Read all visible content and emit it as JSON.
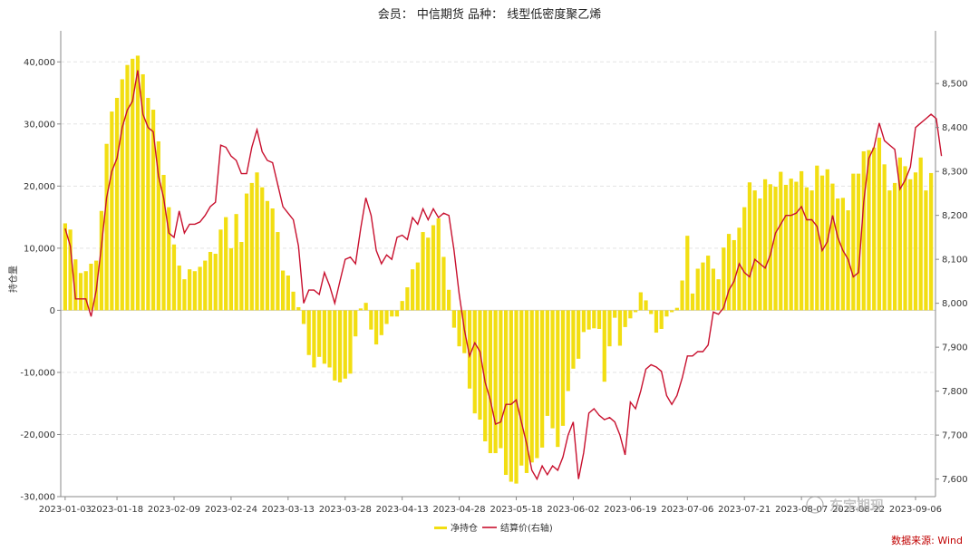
{
  "chart_data": {
    "type": "bar+line",
    "title": "会员： 中信期货 品种： 线型低密度聚乙烯",
    "ylabel_left": "持仓量",
    "source_label": "数据来源: Wind",
    "watermark": "东宇期现",
    "colors": {
      "bar": "#f2de12",
      "line": "#c8102e",
      "grid": "#e3e3e3",
      "axis": "#888888"
    },
    "left_axis": {
      "min": -30000,
      "max": 45000,
      "ticks": [
        -30000,
        -20000,
        -10000,
        0,
        10000,
        20000,
        30000,
        40000
      ],
      "tick_labels": [
        "-30,000",
        "-20,000",
        "-10,000",
        "0",
        "10,000",
        "20,000",
        "30,000",
        "40,000"
      ]
    },
    "right_axis": {
      "min": 7560,
      "max": 8620,
      "ticks": [
        7600,
        7700,
        7800,
        7900,
        8000,
        8100,
        8200,
        8300,
        8400,
        8500
      ],
      "tick_labels": [
        "7,600",
        "7,700",
        "7,800",
        "7,900",
        "8,000",
        "8,100",
        "8,200",
        "8,300",
        "8,400",
        "8,500"
      ]
    },
    "x_tick_labels": [
      "2023-01-03",
      "2023-01-18",
      "2023-02-09",
      "2023-02-24",
      "2023-03-13",
      "2023-03-28",
      "2023-04-13",
      "2023-04-28",
      "2023-05-18",
      "2023-06-02",
      "2023-06-19",
      "2023-07-06",
      "2023-07-21",
      "2023-08-07",
      "2023-08-22",
      "2023-09-06"
    ],
    "x_tick_index": [
      0,
      10,
      21,
      32,
      43,
      54,
      65,
      76,
      87,
      98,
      109,
      120,
      131,
      142,
      153,
      164
    ],
    "series": [
      {
        "name": "净持仓",
        "type": "bar",
        "values": [
          14000,
          13000,
          8200,
          6000,
          6300,
          7500,
          8000,
          16000,
          26800,
          32000,
          34200,
          37200,
          39500,
          40500,
          41000,
          38000,
          34200,
          32300,
          27200,
          21800,
          16600,
          10600,
          7200,
          5000,
          6600,
          6300,
          7000,
          8000,
          9400,
          9100,
          13000,
          15000,
          10000,
          15500,
          11000,
          18800,
          20500,
          22200,
          19800,
          17600,
          16400,
          12600,
          6400,
          5600,
          3000,
          500,
          -2200,
          -7200,
          -9200,
          -7500,
          -8600,
          -9200,
          -11300,
          -11600,
          -11000,
          -10200,
          -4200,
          300,
          1200,
          -3100,
          -5500,
          -4000,
          -2200,
          -1000,
          -1000,
          1500,
          3700,
          6600,
          7700,
          12600,
          11700,
          13700,
          14800,
          8600,
          3300,
          -2800,
          -5800,
          -6900,
          -12600,
          -16600,
          -17600,
          -21100,
          -23000,
          -23000,
          -22200,
          -26500,
          -27600,
          -27900,
          -25000,
          -26200,
          -24500,
          -23800,
          -22100,
          -17000,
          -19000,
          -22000,
          -18600,
          -13000,
          -9400,
          -7800,
          -3500,
          -3100,
          -2900,
          -3000,
          -11500,
          -5800,
          -1200,
          -5700,
          -2700,
          -1300,
          -300,
          2900,
          1600,
          -600,
          -3600,
          -3000,
          -1000,
          -300,
          400,
          4800,
          12000,
          2700,
          6700,
          7700,
          8800,
          6700,
          5000,
          10100,
          12300,
          11300,
          13300,
          16600,
          20600,
          19300,
          18000,
          21100,
          20300,
          19900,
          22300,
          20200,
          21200,
          20700,
          22400,
          19800,
          19300,
          23300,
          21700,
          22700,
          20400,
          18000,
          18100,
          16100,
          22000,
          22000,
          25600,
          25800,
          26200,
          27800,
          23500,
          19300,
          20500,
          24600,
          23200,
          21100,
          22200,
          24600,
          19300,
          22100
        ]
      },
      {
        "name": "结算价(右轴)",
        "type": "line",
        "values": [
          8170,
          8130,
          8010,
          8010,
          8010,
          7970,
          8030,
          8130,
          8240,
          8300,
          8330,
          8400,
          8440,
          8460,
          8530,
          8430,
          8400,
          8390,
          8290,
          8240,
          8160,
          8150,
          8210,
          8160,
          8180,
          8180,
          8185,
          8200,
          8220,
          8230,
          8360,
          8355,
          8335,
          8325,
          8295,
          8295,
          8355,
          8395,
          8345,
          8325,
          8320,
          8270,
          8220,
          8205,
          8190,
          8130,
          8000,
          8030,
          8030,
          8020,
          8070,
          8040,
          8000,
          8050,
          8100,
          8105,
          8090,
          8170,
          8240,
          8200,
          8120,
          8090,
          8110,
          8100,
          8150,
          8155,
          8145,
          8195,
          8180,
          8215,
          8190,
          8215,
          8195,
          8205,
          8200,
          8120,
          8020,
          7940,
          7880,
          7910,
          7890,
          7820,
          7780,
          7725,
          7730,
          7770,
          7770,
          7780,
          7730,
          7680,
          7620,
          7600,
          7630,
          7610,
          7630,
          7620,
          7650,
          7700,
          7730,
          7600,
          7660,
          7750,
          7760,
          7745,
          7735,
          7740,
          7730,
          7700,
          7655,
          7775,
          7760,
          7800,
          7850,
          7860,
          7855,
          7845,
          7790,
          7770,
          7790,
          7830,
          7880,
          7880,
          7890,
          7890,
          7905,
          7980,
          7975,
          7990,
          8030,
          8050,
          8090,
          8070,
          8060,
          8100,
          8090,
          8080,
          8110,
          8160,
          8180,
          8200,
          8200,
          8205,
          8220,
          8190,
          8190,
          8175,
          8120,
          8140,
          8200,
          8150,
          8120,
          8100,
          8060,
          8070,
          8230,
          8330,
          8355,
          8410,
          8370,
          8360,
          8350,
          8260,
          8280,
          8310,
          8400,
          8410,
          8420,
          8430,
          8420,
          8335
        ]
      }
    ]
  }
}
